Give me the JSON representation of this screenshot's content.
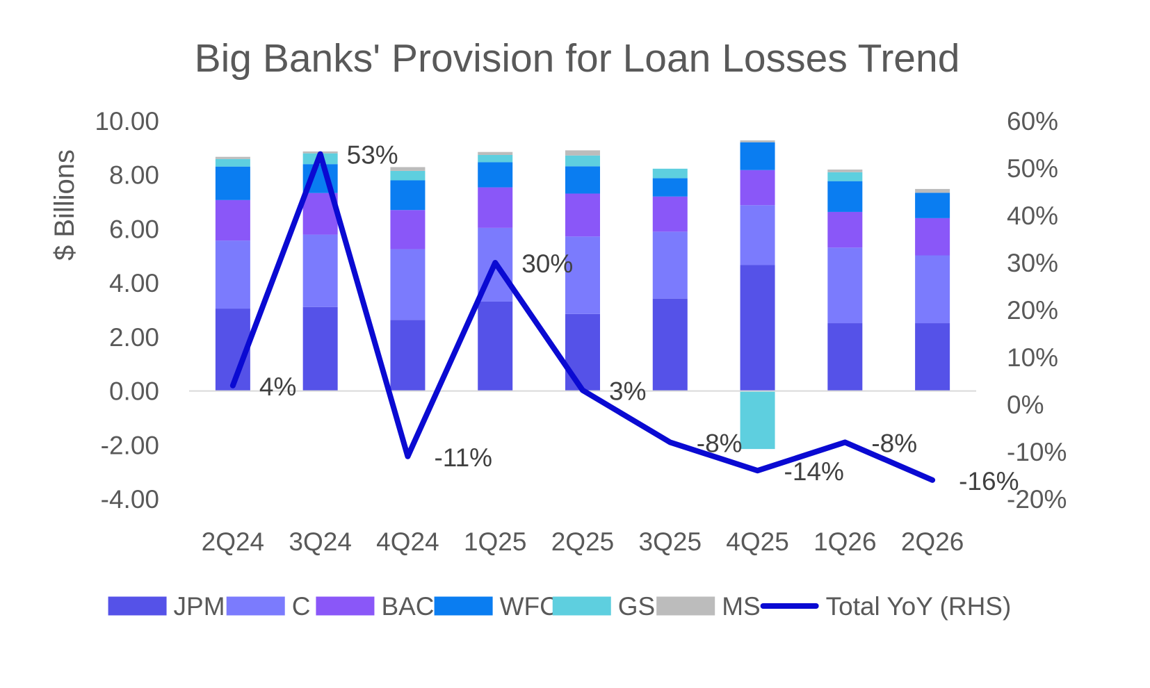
{
  "chart_data": {
    "type": "bar",
    "title": "Big Banks' Provision for Loan Losses Trend",
    "ylabel": "$ Billions",
    "y2label": "",
    "categories": [
      "2Q24",
      "3Q24",
      "4Q24",
      "1Q25",
      "2Q25",
      "3Q25",
      "4Q25",
      "1Q26",
      "2Q26"
    ],
    "ylim": [
      -4,
      10
    ],
    "y2lim": [
      -20,
      60
    ],
    "y_ticks": [
      "10.00",
      "8.00",
      "6.00",
      "4.00",
      "2.00",
      "0.00",
      "-2.00",
      "-4.00"
    ],
    "y2_ticks": [
      "60%",
      "50%",
      "40%",
      "30%",
      "20%",
      "10%",
      "0%",
      "-10%",
      "-20%"
    ],
    "stacked": true,
    "series": [
      {
        "name": "JPM",
        "color": "#5552e8",
        "values": [
          3.05,
          3.11,
          2.63,
          3.31,
          2.85,
          3.42,
          4.66,
          2.51,
          2.51
        ]
      },
      {
        "name": "C",
        "color": "#7b7bfd",
        "values": [
          2.52,
          2.68,
          2.62,
          2.73,
          2.87,
          2.48,
          2.22,
          2.8,
          2.51
        ]
      },
      {
        "name": "BAC",
        "color": "#8a57f8",
        "values": [
          1.5,
          1.54,
          1.45,
          1.5,
          1.59,
          1.3,
          1.3,
          1.32,
          1.38
        ]
      },
      {
        "name": "WFC",
        "color": "#0a7df1",
        "values": [
          1.24,
          1.07,
          1.1,
          0.93,
          1.01,
          0.68,
          1.03,
          1.14,
          0.94
        ]
      },
      {
        "name": "GS",
        "color": "#5ecfdf",
        "values": [
          0.28,
          0.4,
          0.35,
          0.27,
          0.4,
          0.35,
          -2.15,
          0.33,
          0.0
        ]
      },
      {
        "name": "MS",
        "color": "#bcbcbc",
        "values": [
          0.08,
          0.07,
          0.14,
          0.11,
          0.19,
          0.0,
          0.07,
          0.1,
          0.14
        ]
      }
    ],
    "line_series": {
      "name": "Total YoY (RHS)",
      "color": "#0a0ad2",
      "values": [
        4,
        53,
        -11,
        30,
        3,
        -8,
        -14,
        -8,
        -16
      ],
      "labels": [
        "4%",
        "53%",
        "-11%",
        "30%",
        "3%",
        "-8%",
        "-14%",
        "-8%",
        "-16%"
      ]
    },
    "legend": {
      "placement": "bottom"
    },
    "grid": false
  }
}
